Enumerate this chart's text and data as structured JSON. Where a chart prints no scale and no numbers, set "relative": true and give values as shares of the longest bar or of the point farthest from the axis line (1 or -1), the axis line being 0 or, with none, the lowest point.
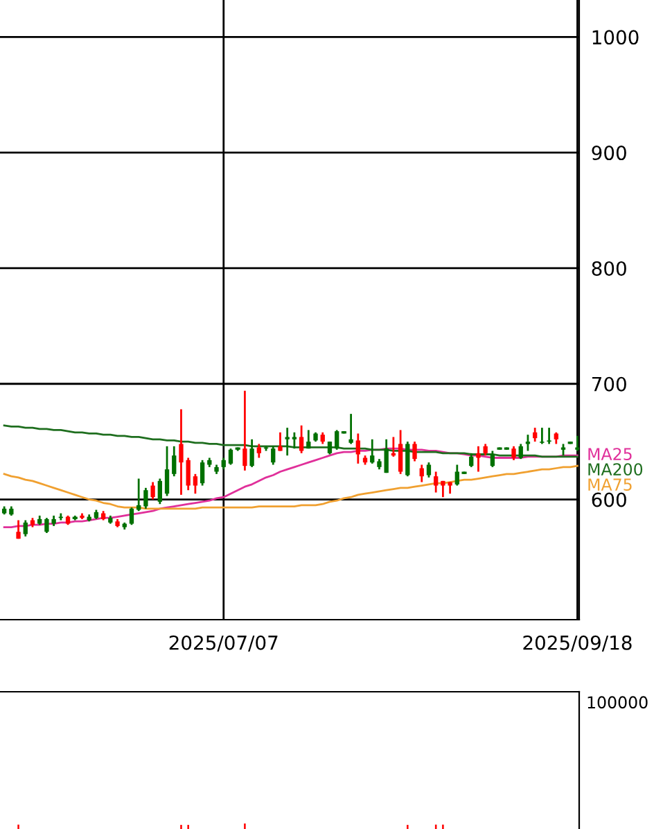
{
  "chart_data": [
    {
      "type": "candlestick",
      "categories": [
        null,
        null,
        null,
        null,
        null,
        null,
        null,
        null,
        null,
        null,
        null,
        null,
        null,
        null,
        null,
        null,
        null,
        null,
        null,
        null,
        null,
        null,
        null,
        null,
        null,
        null,
        null,
        null,
        null,
        null,
        null,
        "2025/07/07",
        null,
        null,
        null,
        null,
        null,
        null,
        null,
        null,
        null,
        null,
        null,
        null,
        null,
        null,
        null,
        null,
        null,
        null,
        null,
        null,
        null,
        null,
        null,
        null,
        null,
        null,
        null,
        null,
        null,
        null,
        null,
        null,
        null,
        null,
        null,
        null,
        null,
        null,
        null,
        null,
        null,
        null,
        null,
        null,
        null,
        null,
        null,
        null,
        null,
        "2025/09/18"
      ],
      "ohlc": [
        [
          588,
          594,
          587,
          592
        ],
        [
          587,
          594,
          586,
          592
        ],
        [
          572,
          582,
          566,
          566
        ],
        [
          570,
          582,
          568,
          580
        ],
        [
          582,
          584,
          576,
          578
        ],
        [
          579,
          586,
          578,
          583
        ],
        [
          572,
          584,
          571,
          583
        ],
        [
          579,
          586,
          577,
          583
        ],
        [
          584,
          588,
          582,
          585
        ],
        [
          585,
          586,
          578,
          579
        ],
        [
          584,
          586,
          582,
          584
        ],
        [
          586,
          588,
          583,
          584
        ],
        [
          582,
          587,
          581,
          585
        ],
        [
          584,
          591,
          583,
          589
        ],
        [
          588,
          590,
          582,
          583
        ],
        [
          580,
          586,
          579,
          584
        ],
        [
          581,
          583,
          576,
          577
        ],
        [
          576,
          580,
          574,
          579
        ],
        [
          579,
          593,
          578,
          592
        ],
        [
          591,
          618,
          590,
          595
        ],
        [
          594,
          610,
          592,
          608
        ],
        [
          612,
          615,
          600,
          602
        ],
        [
          598,
          618,
          596,
          616
        ],
        [
          605,
          646,
          603,
          626
        ],
        [
          622,
          646,
          620,
          638
        ],
        [
          648,
          678,
          604,
          632
        ],
        [
          634,
          636,
          608,
          612
        ],
        [
          620,
          622,
          605,
          612
        ],
        [
          614,
          634,
          612,
          632
        ],
        [
          630,
          636,
          628,
          634
        ],
        [
          624,
          630,
          622,
          628
        ],
        [
          628,
          636,
          626,
          634
        ],
        [
          631,
          644,
          630,
          643
        ],
        [
          644,
          645,
          642,
          644
        ],
        [
          644,
          694,
          625,
          629
        ],
        [
          629,
          652,
          628,
          644
        ],
        [
          645,
          648,
          636,
          640
        ],
        [
          644,
          646,
          642,
          645
        ],
        [
          632,
          646,
          630,
          644
        ],
        [
          646,
          658,
          642,
          642
        ],
        [
          652,
          662,
          638,
          654
        ],
        [
          652,
          658,
          644,
          654
        ],
        [
          654,
          664,
          640,
          642
        ],
        [
          644,
          660,
          644,
          650
        ],
        [
          651,
          658,
          650,
          657
        ],
        [
          656,
          658,
          648,
          650
        ],
        [
          640,
          650,
          639,
          650
        ],
        [
          644,
          660,
          643,
          659
        ],
        [
          658,
          659,
          657,
          658
        ],
        [
          649,
          674,
          648,
          652
        ],
        [
          651,
          657,
          631,
          639
        ],
        [
          636,
          638,
          630,
          632
        ],
        [
          632,
          652,
          631,
          638
        ],
        [
          628,
          635,
          626,
          633
        ],
        [
          623,
          652,
          623,
          644
        ],
        [
          640,
          654,
          637,
          638
        ],
        [
          648,
          660,
          622,
          624
        ],
        [
          621,
          650,
          620,
          648
        ],
        [
          648,
          650,
          633,
          635
        ],
        [
          627,
          630,
          615,
          620
        ],
        [
          621,
          632,
          619,
          630
        ],
        [
          620,
          624,
          606,
          612
        ],
        [
          616,
          616,
          602,
          612
        ],
        [
          615,
          615,
          605,
          612
        ],
        [
          613,
          630,
          612,
          624
        ],
        [
          623,
          624,
          622,
          623
        ],
        [
          629,
          640,
          628,
          637
        ],
        [
          640,
          646,
          624,
          636
        ],
        [
          646,
          648,
          638,
          640
        ],
        [
          629,
          642,
          628,
          639
        ],
        [
          644,
          645,
          643,
          644
        ],
        [
          644,
          645,
          643,
          644
        ],
        [
          644,
          646,
          634,
          636
        ],
        [
          636,
          648,
          635,
          646
        ],
        [
          648,
          656,
          642,
          650
        ],
        [
          658,
          662,
          650,
          653
        ],
        [
          649,
          662,
          648,
          650
        ],
        [
          650,
          662,
          648,
          651
        ],
        [
          657,
          658,
          648,
          652
        ],
        [
          643,
          648,
          638,
          645
        ],
        [
          649,
          650,
          648,
          649
        ],
        [
          643,
          655,
          642,
          645
        ]
      ],
      "colors": [
        "#007000",
        "#007000",
        "#ff0000",
        "#007000",
        "#ff0000",
        "#007000",
        "#007000",
        "#007000",
        "#007000",
        "#ff0000",
        "#007000",
        "#ff0000",
        "#007000",
        "#007000",
        "#ff0000",
        "#007000",
        "#ff0000",
        "#007000",
        "#007000",
        "#007000",
        "#007000",
        "#ff0000",
        "#007000",
        "#007000",
        "#007000",
        "#ff0000",
        "#ff0000",
        "#ff0000",
        "#007000",
        "#007000",
        "#007000",
        "#007000",
        "#007000",
        "#007000",
        "#ff0000",
        "#007000",
        "#ff0000",
        "#007000",
        "#007000",
        "#ff0000",
        "#007000",
        "#007000",
        "#ff0000",
        "#007000",
        "#007000",
        "#ff0000",
        "#007000",
        "#007000",
        "#007000",
        "#007000",
        "#ff0000",
        "#ff0000",
        "#007000",
        "#007000",
        "#007000",
        "#ff0000",
        "#ff0000",
        "#007000",
        "#ff0000",
        "#ff0000",
        "#007000",
        "#ff0000",
        "#ff0000",
        "#ff0000",
        "#007000",
        "#007000",
        "#007000",
        "#ff0000",
        "#ff0000",
        "#007000",
        "#007000",
        "#007000",
        "#ff0000",
        "#007000",
        "#007000",
        "#ff0000",
        "#007000",
        "#007000",
        "#ff0000",
        "#007000",
        "#007000",
        "#007000"
      ],
      "series": [
        {
          "name": "MA25",
          "type": "line",
          "color": "#e0309a",
          "values": [
            576,
            576,
            577,
            577,
            578,
            578,
            579,
            579,
            580,
            580,
            581,
            581,
            582,
            583,
            584,
            584,
            585,
            586,
            587,
            588,
            589,
            590,
            592,
            593,
            594,
            595,
            596,
            597,
            598,
            599,
            601,
            602,
            605,
            608,
            611,
            613,
            616,
            619,
            621,
            624,
            626,
            628,
            630,
            632,
            634,
            636,
            638,
            640,
            641,
            641,
            642,
            642,
            643,
            643,
            644,
            644,
            644,
            643,
            643,
            643,
            642,
            642,
            641,
            640,
            640,
            639,
            638,
            638,
            637,
            636,
            636,
            636,
            636,
            636,
            637,
            637,
            637,
            637,
            637,
            638,
            638,
            638
          ]
        },
        {
          "name": "MA200",
          "type": "line",
          "color": "#1e6e1e",
          "values": [
            664,
            663,
            663,
            662,
            662,
            661,
            661,
            660,
            660,
            659,
            658,
            658,
            657,
            657,
            656,
            656,
            655,
            655,
            654,
            654,
            653,
            652,
            652,
            651,
            651,
            650,
            650,
            649,
            649,
            648,
            648,
            647,
            647,
            647,
            647,
            646,
            646,
            646,
            646,
            646,
            646,
            645,
            645,
            645,
            645,
            645,
            645,
            645,
            644,
            644,
            644,
            644,
            643,
            643,
            643,
            642,
            642,
            642,
            641,
            641,
            641,
            641,
            640,
            640,
            640,
            640,
            639,
            639,
            639,
            639,
            638,
            638,
            638,
            638,
            638,
            638,
            637,
            637,
            637,
            637,
            637,
            637
          ]
        },
        {
          "name": "MA75",
          "type": "line",
          "color": "#f0a030",
          "values": [
            622,
            620,
            619,
            617,
            616,
            614,
            612,
            610,
            608,
            606,
            604,
            602,
            600,
            599,
            597,
            596,
            594,
            593,
            593,
            593,
            592,
            592,
            592,
            592,
            592,
            592,
            592,
            592,
            593,
            593,
            593,
            593,
            593,
            593,
            593,
            593,
            594,
            594,
            594,
            594,
            594,
            594,
            595,
            595,
            595,
            596,
            598,
            599,
            601,
            602,
            604,
            605,
            606,
            607,
            608,
            609,
            610,
            610,
            611,
            612,
            613,
            614,
            614,
            615,
            616,
            617,
            617,
            618,
            619,
            620,
            621,
            622,
            622,
            623,
            624,
            625,
            626,
            626,
            627,
            628,
            628,
            629
          ]
        }
      ],
      "ylim": [
        496,
        1032
      ],
      "yticks": [
        600,
        700,
        800,
        900,
        1000
      ],
      "grid": true
    },
    {
      "type": "bar",
      "categories": [
        null,
        null,
        null,
        null,
        null,
        null,
        null,
        null,
        null,
        null,
        null,
        null,
        null,
        null,
        null,
        null,
        null,
        null,
        null,
        null,
        null,
        null,
        null,
        null,
        null,
        null,
        null,
        null,
        null,
        null,
        null,
        null,
        null,
        null,
        null,
        null,
        null,
        null,
        null,
        null,
        null,
        null,
        null,
        null,
        null,
        null,
        null,
        null,
        null,
        null,
        null,
        null,
        null,
        null,
        null,
        null,
        null,
        null,
        null,
        null,
        null,
        null,
        null,
        null,
        null,
        null,
        null,
        null,
        null,
        null,
        null,
        null,
        null,
        null,
        null,
        null,
        null,
        null,
        null,
        null,
        null,
        null
      ],
      "values": [
        null,
        null,
        0.8,
        null,
        null,
        null,
        null,
        null,
        null,
        null,
        null,
        null,
        null,
        null,
        null,
        null,
        null,
        null,
        null,
        null,
        null,
        null,
        null,
        null,
        null,
        0.75,
        0.75,
        null,
        null,
        null,
        null,
        null,
        null,
        null,
        1,
        null,
        null,
        null,
        null,
        null,
        null,
        null,
        null,
        null,
        null,
        null,
        null,
        null,
        null,
        null,
        null,
        null,
        null,
        null,
        null,
        null,
        null,
        0.75,
        null,
        null,
        null,
        0.8,
        0.8,
        null,
        null,
        null,
        null,
        null,
        null,
        null,
        null,
        null,
        null,
        null,
        null,
        null,
        null,
        null,
        null,
        null,
        null,
        null
      ],
      "color": "#ff0000",
      "relative": true,
      "annotations": [
        "100000"
      ]
    }
  ]
}
